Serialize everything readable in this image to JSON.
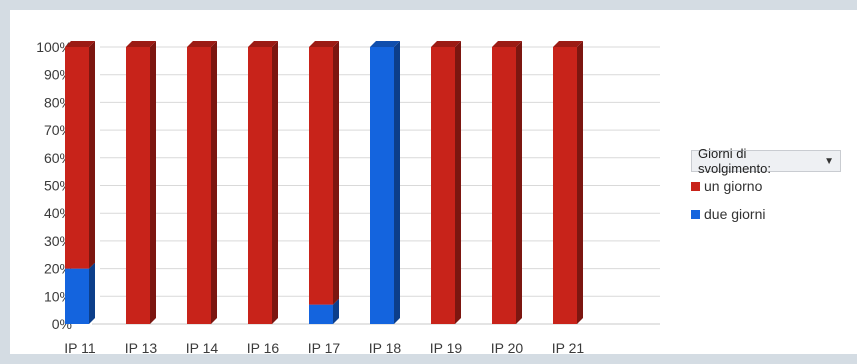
{
  "chart_data": {
    "type": "bar",
    "stacked": true,
    "three_d": true,
    "categories": [
      "IP 11",
      "IP 13",
      "IP 14",
      "IP 16",
      "IP 17",
      "IP 18",
      "IP 19",
      "IP 20",
      "IP 21"
    ],
    "series": [
      {
        "name": "due giorni",
        "color": "#1464de",
        "values": [
          20,
          0,
          0,
          0,
          7,
          100,
          0,
          0,
          0
        ]
      },
      {
        "name": "un giorno",
        "color": "#c8231a",
        "values": [
          80,
          100,
          100,
          100,
          93,
          0,
          100,
          100,
          100
        ]
      }
    ],
    "y_ticks": [
      "0%",
      "10%",
      "20%",
      "30%",
      "40%",
      "50%",
      "60%",
      "70%",
      "80%",
      "90%",
      "100%"
    ],
    "ylim": [
      0,
      100
    ],
    "grid": true,
    "legend": {
      "placement": "right",
      "title": "Giorni di svolgimento:",
      "entries": [
        "un giorno",
        "due giorni"
      ]
    }
  }
}
